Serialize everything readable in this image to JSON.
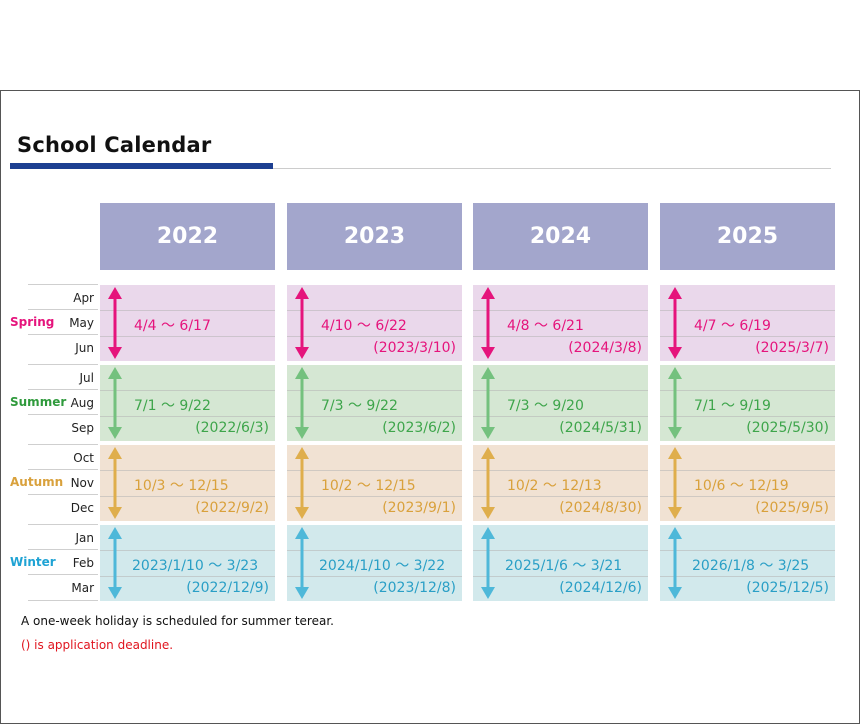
{
  "title": "School Calendar",
  "years": [
    "2022",
    "2023",
    "2024",
    "2025"
  ],
  "seasons": [
    {
      "label": "Spring",
      "color": "#e5147c",
      "bg": "#ead8eb",
      "months": [
        "Apr",
        "May",
        "Jun"
      ],
      "cells": [
        {
          "range": "4/4 ～ 6/17",
          "deadline": ""
        },
        {
          "range": "4/10 ～ 6/22",
          "deadline": "(2023/3/10)"
        },
        {
          "range": "4/8 ～ 6/21",
          "deadline": "(2024/3/8)"
        },
        {
          "range": "4/7 ～ 6/19",
          "deadline": "(2025/3/7)"
        }
      ]
    },
    {
      "label": "Summer",
      "color": "#2f9a3c",
      "arrow": "#74c17e",
      "bg": "#d5e7d3",
      "text": "#3ea54b",
      "months": [
        "Jul",
        "Aug",
        "Sep"
      ],
      "cells": [
        {
          "range": "7/1 ～ 9/22",
          "deadline": "(2022/6/3)"
        },
        {
          "range": "7/3 ～ 9/22",
          "deadline": "(2023/6/2)"
        },
        {
          "range": "7/3 ～ 9/20",
          "deadline": "(2024/5/31)"
        },
        {
          "range": "7/1 ～ 9/19",
          "deadline": "(2025/5/30)"
        }
      ]
    },
    {
      "label": "Autumn",
      "color": "#d9a13c",
      "arrow": "#dfae4c",
      "bg": "#f1e2d3",
      "text": "#d9a13c",
      "months": [
        "Oct",
        "Nov",
        "Dec"
      ],
      "cells": [
        {
          "range": "10/3 ～ 12/15",
          "deadline": "(2022/9/2)"
        },
        {
          "range": "10/2 ～ 12/15",
          "deadline": "(2023/9/1)"
        },
        {
          "range": "10/2 ～ 12/13",
          "deadline": "(2024/8/30)"
        },
        {
          "range": "10/6 ～ 12/19",
          "deadline": "(2025/9/5)"
        }
      ]
    },
    {
      "label": "Winter",
      "color": "#1fa3d4",
      "arrow": "#4eb8d9",
      "bg": "#d2e9ec",
      "text": "#2a9fc6",
      "months": [
        "Jan",
        "Feb",
        "Mar"
      ],
      "cells": [
        {
          "range": "2023/1/10 ～ 3/23",
          "deadline": "(2022/12/9)"
        },
        {
          "range": "2024/1/10 ～ 3/22",
          "deadline": "(2023/12/8)"
        },
        {
          "range": "2025/1/6 ～ 3/21",
          "deadline": "(2024/12/6)"
        },
        {
          "range": "2026/1/8 ～ 3/25",
          "deadline": "(2025/12/5)"
        }
      ]
    }
  ],
  "notes": {
    "holiday": "A one-week holiday is scheduled for summer terear.",
    "deadline": "() is application deadline."
  }
}
